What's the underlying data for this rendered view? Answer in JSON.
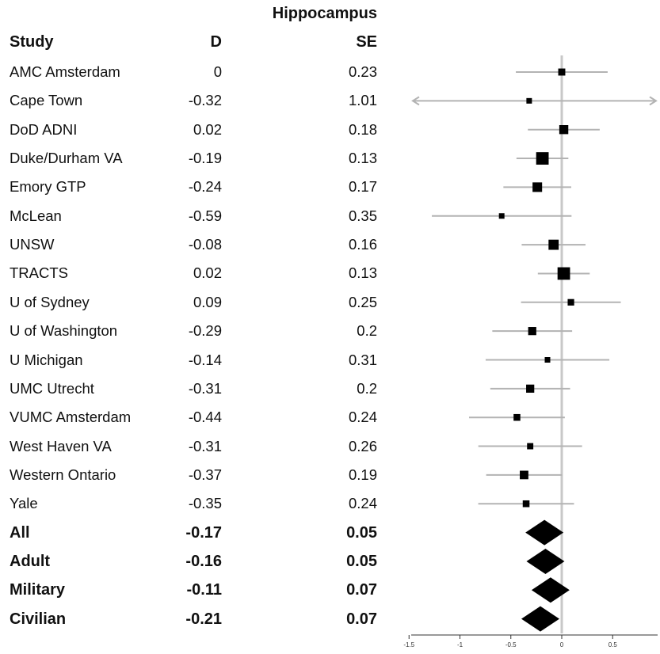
{
  "chart_data": {
    "type": "forest",
    "title": "Hippocampus",
    "columns": {
      "study": "Study",
      "d": "D",
      "se": "SE"
    },
    "xlim": [
      -1.5,
      0.9
    ],
    "xticks": [
      "-1.5",
      "-1",
      "-0.5",
      "0",
      "0.5"
    ],
    "reference_line": 0,
    "studies": [
      {
        "name": "AMC Amsterdam",
        "d": "0",
        "se": "0.23",
        "dv": 0,
        "sev": 0.23
      },
      {
        "name": "Cape Town",
        "d": "-0.32",
        "se": "1.01",
        "dv": -0.32,
        "sev": 1.01
      },
      {
        "name": "DoD ADNI",
        "d": "0.02",
        "se": "0.18",
        "dv": 0.02,
        "sev": 0.18
      },
      {
        "name": "Duke/Durham VA",
        "d": "-0.19",
        "se": "0.13",
        "dv": -0.19,
        "sev": 0.13
      },
      {
        "name": "Emory GTP",
        "d": "-0.24",
        "se": "0.17",
        "dv": -0.24,
        "sev": 0.17
      },
      {
        "name": "McLean",
        "d": "-0.59",
        "se": "0.35",
        "dv": -0.59,
        "sev": 0.35
      },
      {
        "name": "UNSW",
        "d": "-0.08",
        "se": "0.16",
        "dv": -0.08,
        "sev": 0.16
      },
      {
        "name": "TRACTS",
        "d": "0.02",
        "se": "0.13",
        "dv": 0.02,
        "sev": 0.13
      },
      {
        "name": "U of Sydney",
        "d": "0.09",
        "se": "0.25",
        "dv": 0.09,
        "sev": 0.25
      },
      {
        "name": "U of Washington",
        "d": "-0.29",
        "se": "0.2",
        "dv": -0.29,
        "sev": 0.2
      },
      {
        "name": "U Michigan",
        "d": "-0.14",
        "se": "0.31",
        "dv": -0.14,
        "sev": 0.31
      },
      {
        "name": "UMC Utrecht",
        "d": "-0.31",
        "se": "0.2",
        "dv": -0.31,
        "sev": 0.2
      },
      {
        "name": "VUMC Amsterdam",
        "d": "-0.44",
        "se": "0.24",
        "dv": -0.44,
        "sev": 0.24
      },
      {
        "name": "West Haven VA",
        "d": "-0.31",
        "se": "0.26",
        "dv": -0.31,
        "sev": 0.26
      },
      {
        "name": "Western Ontario",
        "d": "-0.37",
        "se": "0.19",
        "dv": -0.37,
        "sev": 0.19
      },
      {
        "name": "Yale",
        "d": "-0.35",
        "se": "0.24",
        "dv": -0.35,
        "sev": 0.24
      }
    ],
    "summaries": [
      {
        "name": "All",
        "d": "-0.17",
        "se": "0.05",
        "dv": -0.17,
        "sev": 0.05
      },
      {
        "name": "Adult",
        "d": "-0.16",
        "se": "0.05",
        "dv": -0.16,
        "sev": 0.05
      },
      {
        "name": "Military",
        "d": "-0.11",
        "se": "0.07",
        "dv": -0.11,
        "sev": 0.07
      },
      {
        "name": "Civilian",
        "d": "-0.21",
        "se": "0.07",
        "dv": -0.21,
        "sev": 0.07
      }
    ],
    "colors": {
      "ci_line": "#b3b3b3",
      "marker": "#000000",
      "zero_line": "#c8c8c8"
    }
  }
}
